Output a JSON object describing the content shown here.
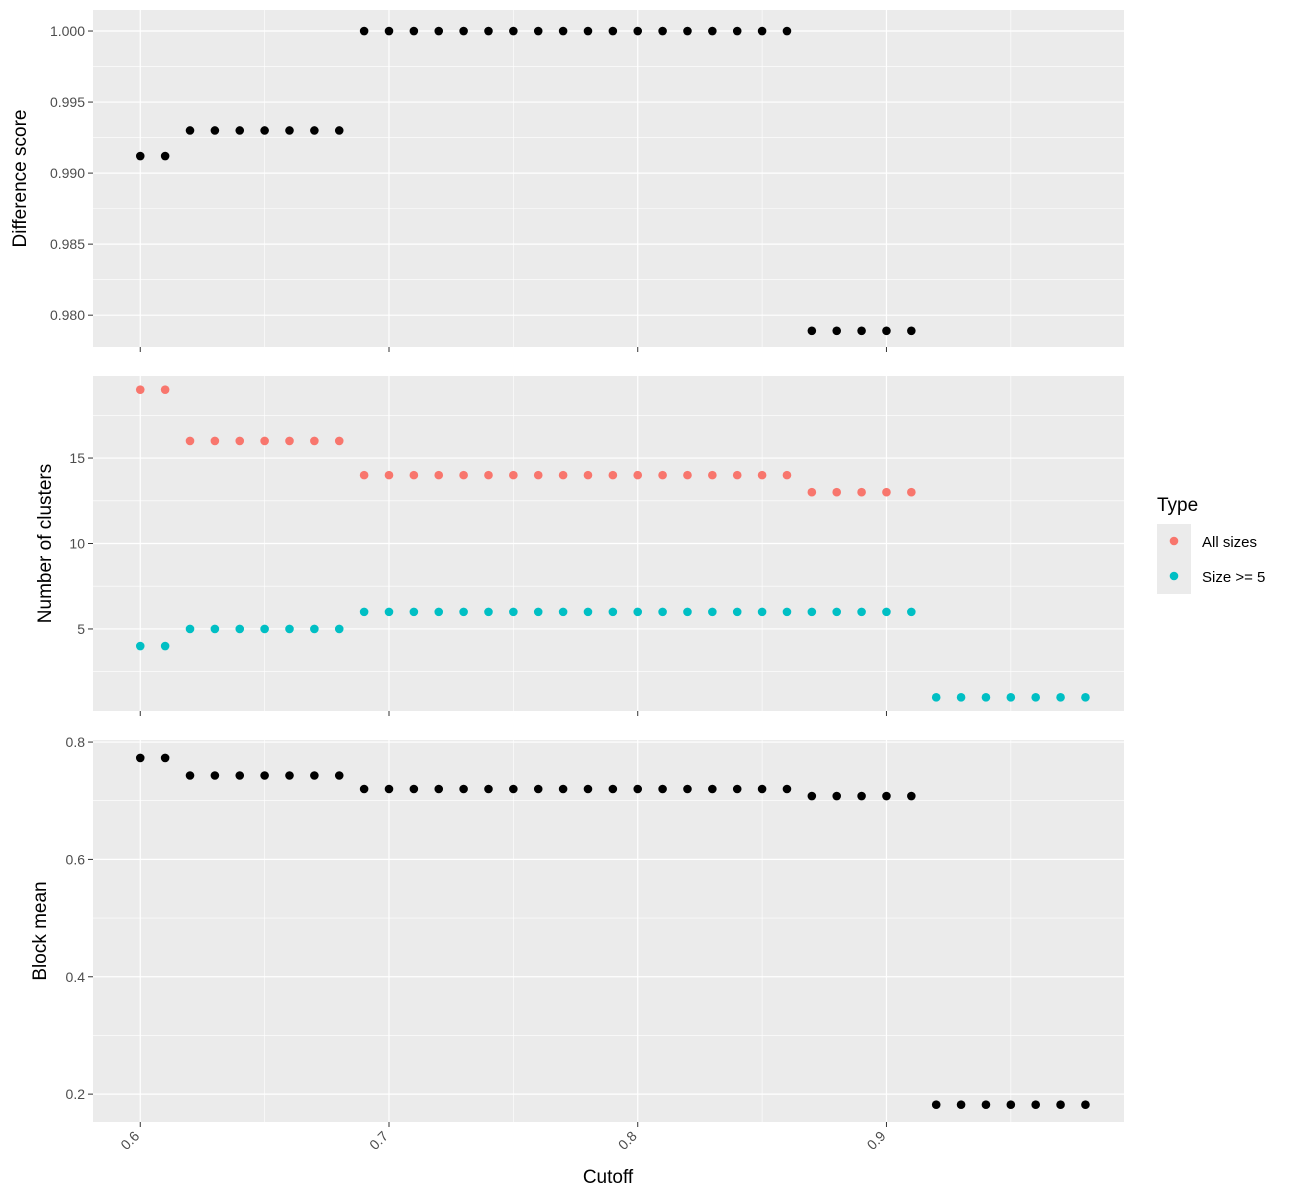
{
  "chart_data": {
    "type": "scatter",
    "xlabel": "Cutoff",
    "xlim": [
      0.581,
      0.9955
    ],
    "x_ticks": [
      0.6,
      0.7,
      0.8,
      0.9
    ],
    "x_tick_labels": [
      "0.6",
      "0.7",
      "0.8",
      "0.9"
    ],
    "grid": true,
    "legend": {
      "title": "Type",
      "placement": "right",
      "entries": [
        {
          "label": "All sizes",
          "color": "#F8766D"
        },
        {
          "label": "Size >= 5",
          "color": "#00BFC4"
        }
      ]
    },
    "panels": [
      {
        "ylabel": "Difference score",
        "ylim": [
          0.97776,
          1.00148
        ],
        "y_ticks": [
          0.98,
          0.985,
          0.99,
          0.995,
          1.0
        ],
        "y_tick_labels": [
          "0.980",
          "0.985",
          "0.990",
          "0.995",
          "1.000"
        ],
        "series": [
          {
            "color": "#000000",
            "x": [
              0.6,
              0.61,
              0.62,
              0.63,
              0.64,
              0.65,
              0.66,
              0.67,
              0.68,
              0.69,
              0.7,
              0.71,
              0.72,
              0.73,
              0.74,
              0.75,
              0.76,
              0.77,
              0.78,
              0.79,
              0.8,
              0.81,
              0.82,
              0.83,
              0.84,
              0.85,
              0.86,
              0.87,
              0.88,
              0.89,
              0.9,
              0.91
            ],
            "y": [
              0.9912,
              0.9912,
              0.993,
              0.993,
              0.993,
              0.993,
              0.993,
              0.993,
              0.993,
              1.0,
              1.0,
              1.0,
              1.0,
              1.0,
              1.0,
              1.0,
              1.0,
              1.0,
              1.0,
              1.0,
              1.0,
              1.0,
              1.0,
              1.0,
              1.0,
              1.0,
              1.0,
              0.9789,
              0.9789,
              0.9789,
              0.9789,
              0.9789
            ]
          }
        ]
      },
      {
        "ylabel": "Number of clusters",
        "ylim": [
          0.2,
          19.8
        ],
        "y_ticks": [
          5,
          10,
          15
        ],
        "y_tick_labels": [
          "5",
          "10",
          "15"
        ],
        "series": [
          {
            "name": "All sizes",
            "color": "#F8766D",
            "x": [
              0.6,
              0.61,
              0.62,
              0.63,
              0.64,
              0.65,
              0.66,
              0.67,
              0.68,
              0.69,
              0.7,
              0.71,
              0.72,
              0.73,
              0.74,
              0.75,
              0.76,
              0.77,
              0.78,
              0.79,
              0.8,
              0.81,
              0.82,
              0.83,
              0.84,
              0.85,
              0.86,
              0.87,
              0.88,
              0.89,
              0.9,
              0.91
            ],
            "y": [
              19,
              19,
              16,
              16,
              16,
              16,
              16,
              16,
              16,
              14,
              14,
              14,
              14,
              14,
              14,
              14,
              14,
              14,
              14,
              14,
              14,
              14,
              14,
              14,
              14,
              14,
              14,
              13,
              13,
              13,
              13,
              13
            ]
          },
          {
            "name": "Size >= 5",
            "color": "#00BFC4",
            "x": [
              0.6,
              0.61,
              0.62,
              0.63,
              0.64,
              0.65,
              0.66,
              0.67,
              0.68,
              0.69,
              0.7,
              0.71,
              0.72,
              0.73,
              0.74,
              0.75,
              0.76,
              0.77,
              0.78,
              0.79,
              0.8,
              0.81,
              0.82,
              0.83,
              0.84,
              0.85,
              0.86,
              0.87,
              0.88,
              0.89,
              0.9,
              0.91,
              0.92,
              0.93,
              0.94,
              0.95,
              0.96,
              0.97,
              0.98
            ],
            "y": [
              4,
              4,
              5,
              5,
              5,
              5,
              5,
              5,
              5,
              6,
              6,
              6,
              6,
              6,
              6,
              6,
              6,
              6,
              6,
              6,
              6,
              6,
              6,
              6,
              6,
              6,
              6,
              6,
              6,
              6,
              6,
              6,
              1,
              1,
              1,
              1,
              1,
              1,
              1
            ]
          }
        ]
      },
      {
        "ylabel": "Block mean",
        "ylim": [
          0.1525,
          0.8035
        ],
        "y_ticks": [
          0.2,
          0.4,
          0.6,
          0.8
        ],
        "y_tick_labels": [
          "0.2",
          "0.4",
          "0.6",
          "0.8"
        ],
        "series": [
          {
            "color": "#000000",
            "x": [
              0.6,
              0.61,
              0.62,
              0.63,
              0.64,
              0.65,
              0.66,
              0.67,
              0.68,
              0.69,
              0.7,
              0.71,
              0.72,
              0.73,
              0.74,
              0.75,
              0.76,
              0.77,
              0.78,
              0.79,
              0.8,
              0.81,
              0.82,
              0.83,
              0.84,
              0.85,
              0.86,
              0.87,
              0.88,
              0.89,
              0.9,
              0.91,
              0.92,
              0.93,
              0.94,
              0.95,
              0.96,
              0.97,
              0.98
            ],
            "y": [
              0.773,
              0.773,
              0.743,
              0.743,
              0.743,
              0.743,
              0.743,
              0.743,
              0.743,
              0.72,
              0.72,
              0.72,
              0.72,
              0.72,
              0.72,
              0.72,
              0.72,
              0.72,
              0.72,
              0.72,
              0.72,
              0.72,
              0.72,
              0.72,
              0.72,
              0.72,
              0.72,
              0.708,
              0.708,
              0.708,
              0.708,
              0.708,
              0.182,
              0.182,
              0.182,
              0.182,
              0.182,
              0.182,
              0.182
            ]
          }
        ]
      }
    ]
  }
}
